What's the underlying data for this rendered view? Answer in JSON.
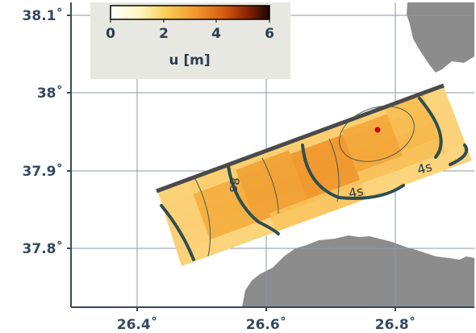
{
  "map": {
    "x_ticks": [
      "26.4˚",
      "26.6˚",
      "26.8˚"
    ],
    "y_ticks": [
      "38.1˚",
      "38˚",
      "37.9˚",
      "37.8˚"
    ],
    "x_tick_values": [
      26.4,
      26.6,
      26.8
    ],
    "y_tick_values": [
      38.1,
      38.0,
      37.9,
      37.8
    ],
    "lon_range": [
      26.31,
      26.96
    ],
    "lat_range": [
      37.72,
      38.12
    ],
    "colors": {
      "land": "#8c8c8c",
      "fault_trace": "#4a4a4a",
      "contour": "#2f4f4f",
      "epicenter": "#cc0000",
      "grid": "#8a9aa6",
      "axes": "#34495e"
    },
    "epicenter": {
      "lon": 26.79,
      "lat": 37.95
    },
    "rupture_time_labels": [
      "8s",
      "4s",
      "4s"
    ]
  },
  "colorbar": {
    "label": "u [m]",
    "ticks": [
      "0",
      "2",
      "4",
      "6"
    ],
    "range": [
      0,
      6
    ],
    "colormap": "afmhot_r"
  }
}
